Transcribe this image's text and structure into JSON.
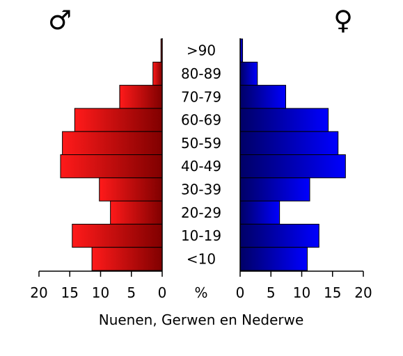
{
  "chart_data": {
    "type": "bar",
    "subtype": "population-pyramid",
    "title": "",
    "xlabel": "Nuenen, Gerwen en Nederwe",
    "unit_label": "%",
    "categories": [
      ">90",
      "80-89",
      "70-79",
      "60-69",
      "50-59",
      "40-49",
      "30-39",
      "20-29",
      "10-19",
      "<10"
    ],
    "series": [
      {
        "name": "♂",
        "color": "#ff0000",
        "values": [
          0.2,
          1.5,
          6.9,
          14.2,
          16.2,
          16.5,
          10.2,
          8.4,
          14.6,
          11.4
        ]
      },
      {
        "name": "♀",
        "color": "#0000ff",
        "values": [
          0.4,
          2.8,
          7.4,
          14.3,
          15.9,
          17.1,
          11.3,
          6.4,
          12.8,
          10.9
        ]
      }
    ],
    "xlim": [
      0,
      20
    ],
    "ticks": [
      "20",
      "15",
      "10",
      "5",
      "0"
    ],
    "ticks_right": [
      "0",
      "5",
      "10",
      "15",
      "20"
    ],
    "grid": false,
    "legend": "symbols-top"
  }
}
